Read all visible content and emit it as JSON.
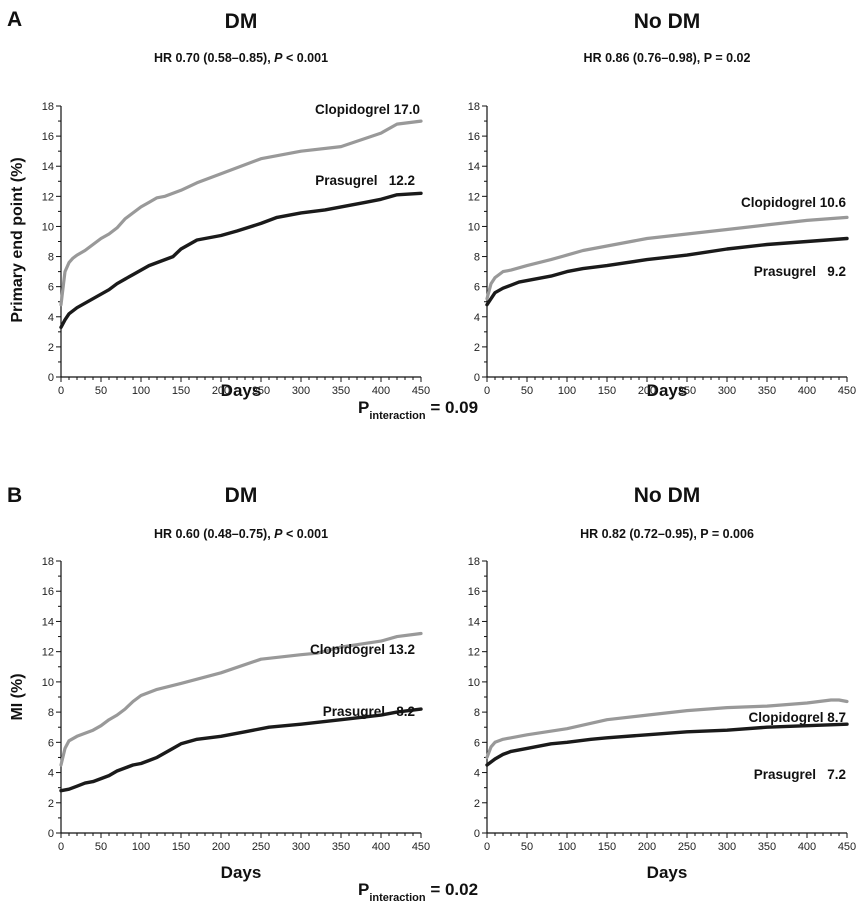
{
  "panels": [
    {
      "letter": "A",
      "ylabel": "Primary end point (%)",
      "p_interaction": "= 0.09"
    },
    {
      "letter": "B",
      "ylabel": "MI (%)",
      "p_interaction": "= 0.02"
    }
  ],
  "p_label_main": "P",
  "p_label_sub": "interaction",
  "colors": {
    "clopidogrel": "#999999",
    "prasugrel": "#1a1a1a"
  },
  "chart_data": [
    {
      "type": "line",
      "title": "DM",
      "subtitle_prefix": "HR 0.70 (0.58–0.85), ",
      "subtitle_p": "P",
      "subtitle_suffix": " < 0.001",
      "xlabel": "Days",
      "ylabel": "Primary end point (%)",
      "xlim": [
        0,
        450
      ],
      "ylim": [
        0,
        18
      ],
      "xticks": [
        0,
        50,
        100,
        150,
        200,
        250,
        300,
        350,
        400,
        450
      ],
      "yticks": [
        0,
        2,
        4,
        6,
        8,
        10,
        12,
        14,
        16,
        18
      ],
      "series": [
        {
          "name": "Clopidogrel",
          "end_label": "17.0",
          "x": [
            0,
            5,
            10,
            15,
            20,
            30,
            40,
            50,
            60,
            70,
            80,
            90,
            100,
            110,
            120,
            130,
            150,
            170,
            200,
            250,
            300,
            350,
            400,
            420,
            450
          ],
          "y": [
            4.8,
            7.0,
            7.6,
            7.9,
            8.1,
            8.4,
            8.8,
            9.2,
            9.5,
            9.9,
            10.5,
            10.9,
            11.3,
            11.6,
            11.9,
            12.0,
            12.4,
            12.9,
            13.5,
            14.5,
            15.0,
            15.3,
            16.2,
            16.8,
            17.0
          ]
        },
        {
          "name": "Prasugrel",
          "end_label": "12.2",
          "x": [
            0,
            5,
            10,
            20,
            30,
            40,
            50,
            60,
            70,
            80,
            90,
            100,
            110,
            120,
            130,
            140,
            150,
            160,
            170,
            180,
            200,
            220,
            250,
            270,
            300,
            330,
            350,
            380,
            400,
            420,
            450
          ],
          "y": [
            3.3,
            3.8,
            4.2,
            4.6,
            4.9,
            5.2,
            5.5,
            5.8,
            6.2,
            6.5,
            6.8,
            7.1,
            7.4,
            7.6,
            7.8,
            8.0,
            8.5,
            8.8,
            9.1,
            9.2,
            9.4,
            9.7,
            10.2,
            10.6,
            10.9,
            11.1,
            11.3,
            11.6,
            11.8,
            12.1,
            12.2
          ]
        }
      ]
    },
    {
      "type": "line",
      "title": "No DM",
      "subtitle_prefix": "HR 0.86 (0.76–0.98), P = 0.02",
      "subtitle_p": "",
      "subtitle_suffix": "",
      "xlabel": "Days",
      "ylabel": "",
      "xlim": [
        0,
        450
      ],
      "ylim": [
        0,
        18
      ],
      "xticks": [
        0,
        50,
        100,
        150,
        200,
        250,
        300,
        350,
        400,
        450
      ],
      "yticks": [
        0,
        2,
        4,
        6,
        8,
        10,
        12,
        14,
        16,
        18
      ],
      "series": [
        {
          "name": "Clopidogrel",
          "end_label": "10.6",
          "x": [
            0,
            5,
            10,
            20,
            30,
            50,
            80,
            100,
            120,
            150,
            200,
            250,
            300,
            350,
            400,
            450
          ],
          "y": [
            5.2,
            6.2,
            6.6,
            7.0,
            7.1,
            7.4,
            7.8,
            8.1,
            8.4,
            8.7,
            9.2,
            9.5,
            9.8,
            10.1,
            10.4,
            10.6
          ]
        },
        {
          "name": "Prasugrel",
          "end_label": "9.2",
          "x": [
            0,
            5,
            10,
            20,
            30,
            40,
            50,
            80,
            100,
            120,
            150,
            200,
            250,
            300,
            350,
            400,
            450
          ],
          "y": [
            4.8,
            5.2,
            5.6,
            5.9,
            6.1,
            6.3,
            6.4,
            6.7,
            7.0,
            7.2,
            7.4,
            7.8,
            8.1,
            8.5,
            8.8,
            9.0,
            9.2
          ]
        }
      ]
    },
    {
      "type": "line",
      "title": "DM",
      "subtitle_prefix": "HR 0.60 (0.48–0.75), ",
      "subtitle_p": "P",
      "subtitle_suffix": " < 0.001",
      "xlabel": "Days",
      "ylabel": "MI (%)",
      "xlim": [
        0,
        450
      ],
      "ylim": [
        0,
        18
      ],
      "xticks": [
        0,
        50,
        100,
        150,
        200,
        250,
        300,
        350,
        400,
        450
      ],
      "yticks": [
        0,
        2,
        4,
        6,
        8,
        10,
        12,
        14,
        16,
        18
      ],
      "series": [
        {
          "name": "Clopidogrel",
          "end_label": "13.2",
          "x": [
            0,
            5,
            10,
            20,
            30,
            40,
            50,
            60,
            70,
            80,
            90,
            100,
            120,
            150,
            200,
            250,
            300,
            320,
            350,
            400,
            420,
            450
          ],
          "y": [
            4.5,
            5.6,
            6.1,
            6.4,
            6.6,
            6.8,
            7.1,
            7.5,
            7.8,
            8.2,
            8.7,
            9.1,
            9.5,
            9.9,
            10.6,
            11.5,
            11.8,
            11.9,
            12.3,
            12.7,
            13.0,
            13.2
          ]
        },
        {
          "name": "Prasugrel",
          "end_label": "8.2",
          "x": [
            0,
            10,
            20,
            30,
            40,
            50,
            60,
            70,
            80,
            90,
            100,
            110,
            120,
            130,
            140,
            150,
            170,
            200,
            230,
            260,
            300,
            350,
            400,
            420,
            450
          ],
          "y": [
            2.8,
            2.9,
            3.1,
            3.3,
            3.4,
            3.6,
            3.8,
            4.1,
            4.3,
            4.5,
            4.6,
            4.8,
            5.0,
            5.3,
            5.6,
            5.9,
            6.2,
            6.4,
            6.7,
            7.0,
            7.2,
            7.5,
            7.8,
            8.0,
            8.2
          ]
        }
      ]
    },
    {
      "type": "line",
      "title": "No DM",
      "subtitle_prefix": "HR 0.82 (0.72–0.95), P = 0.006",
      "subtitle_p": "",
      "subtitle_suffix": "",
      "xlabel": "Days",
      "ylabel": "",
      "xlim": [
        0,
        450
      ],
      "ylim": [
        0,
        18
      ],
      "xticks": [
        0,
        50,
        100,
        150,
        200,
        250,
        300,
        350,
        400,
        450
      ],
      "yticks": [
        0,
        2,
        4,
        6,
        8,
        10,
        12,
        14,
        16,
        18
      ],
      "series": [
        {
          "name": "Clopidogrel",
          "end_label": "8.7",
          "x": [
            0,
            5,
            10,
            20,
            30,
            50,
            100,
            150,
            200,
            250,
            300,
            350,
            400,
            430,
            440,
            450
          ],
          "y": [
            5.0,
            5.7,
            6.0,
            6.2,
            6.3,
            6.5,
            6.9,
            7.5,
            7.8,
            8.1,
            8.3,
            8.4,
            8.6,
            8.8,
            8.8,
            8.7
          ]
        },
        {
          "name": "Prasugrel",
          "end_label": "7.2",
          "x": [
            0,
            10,
            20,
            30,
            50,
            80,
            100,
            130,
            150,
            200,
            250,
            300,
            350,
            400,
            450
          ],
          "y": [
            4.5,
            4.9,
            5.2,
            5.4,
            5.6,
            5.9,
            6.0,
            6.2,
            6.3,
            6.5,
            6.7,
            6.8,
            7.0,
            7.1,
            7.2
          ]
        }
      ]
    }
  ]
}
